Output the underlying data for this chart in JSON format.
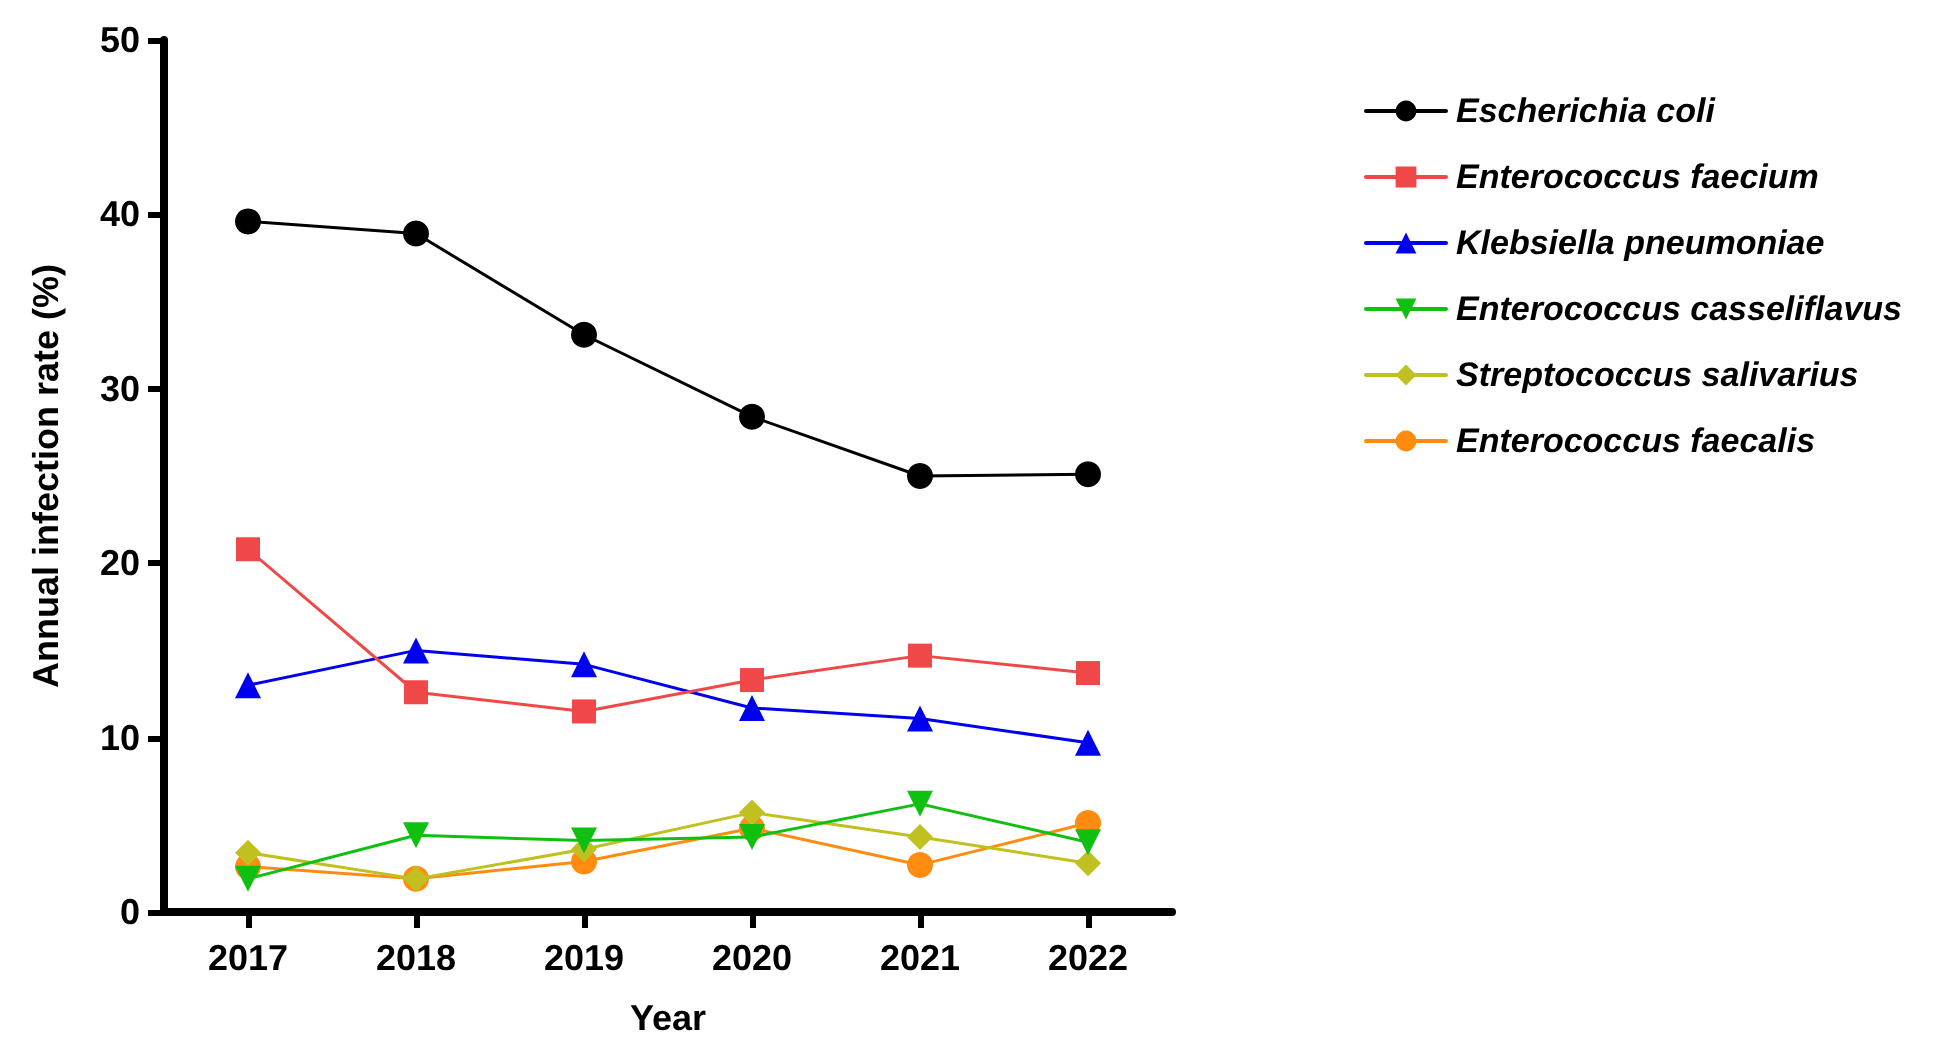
{
  "chart_data": {
    "type": "line",
    "xlabel": "Year",
    "ylabel": "Annual infection rate (%)",
    "categories": [
      "2017",
      "2018",
      "2019",
      "2020",
      "2021",
      "2022"
    ],
    "series": [
      {
        "name": "Escherichia coli",
        "color": "#000000",
        "marker": "circle",
        "values": [
          39.6,
          38.9,
          33.1,
          28.4,
          25.0,
          25.1
        ]
      },
      {
        "name": "Enterococcus faecium",
        "color": "#f04848",
        "marker": "square",
        "values": [
          20.8,
          12.6,
          11.5,
          13.3,
          14.7,
          13.7
        ]
      },
      {
        "name": "Klebsiella pneumoniae",
        "color": "#0000f0",
        "marker": "triangle",
        "values": [
          13.0,
          15.0,
          14.2,
          11.7,
          11.1,
          9.7
        ]
      },
      {
        "name": "Enterococcus casseliflavus",
        "color": "#10c010",
        "marker": "triangle_down",
        "values": [
          1.9,
          4.4,
          4.1,
          4.3,
          6.2,
          4.0
        ]
      },
      {
        "name": "Streptococcus salivarius",
        "color": "#c0c020",
        "marker": "diamond",
        "values": [
          3.4,
          1.9,
          3.6,
          5.7,
          4.3,
          2.8
        ]
      },
      {
        "name": "Enterococcus faecalis",
        "color": "#ff8c10",
        "marker": "circle",
        "values": [
          2.6,
          1.9,
          2.9,
          4.8,
          2.7,
          5.1
        ]
      }
    ],
    "ylim": [
      0,
      50
    ],
    "yticks": [
      0,
      10,
      20,
      30,
      40,
      50
    ],
    "grid": false,
    "legend": "right",
    "line_style": "solid"
  }
}
